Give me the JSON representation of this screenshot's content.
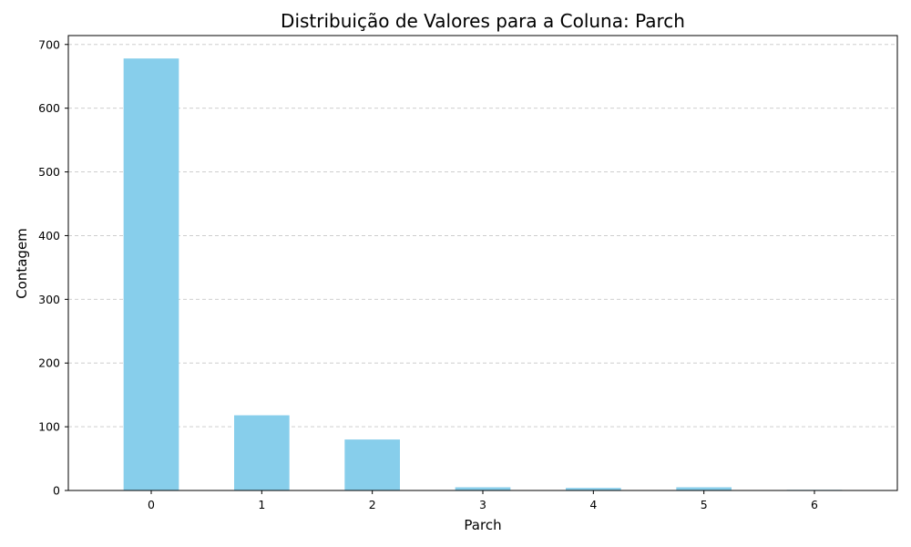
{
  "chart_data": {
    "type": "bar",
    "title": "Distribuição de Valores para a Coluna: Parch",
    "xlabel": "Parch",
    "ylabel": "Contagem",
    "categories": [
      "0",
      "1",
      "2",
      "3",
      "4",
      "5",
      "6"
    ],
    "values": [
      678,
      118,
      80,
      5,
      4,
      5,
      1
    ],
    "ylim": [
      0,
      714
    ],
    "yticks": [
      0,
      100,
      200,
      300,
      400,
      500,
      600,
      700
    ],
    "grid": "y-dashed",
    "bar_color": "#87ceeb",
    "grid_color": "#c8c8c8"
  }
}
